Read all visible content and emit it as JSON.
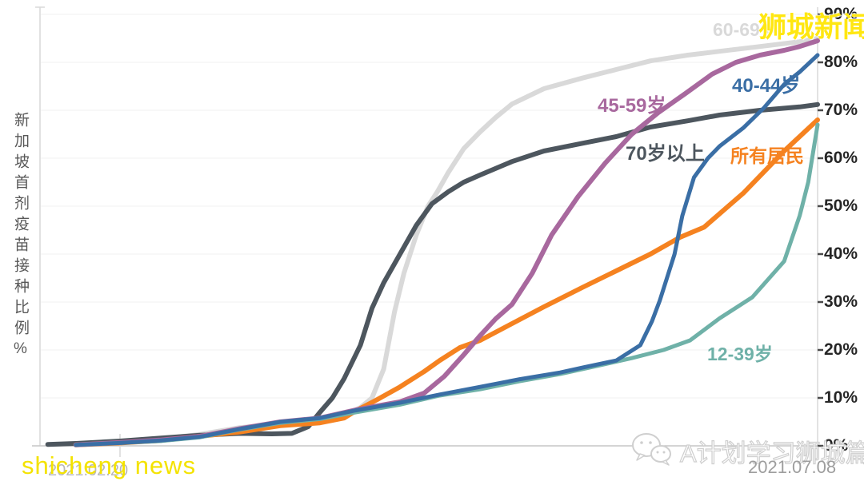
{
  "y_axis_title": "新加坡首剂疫苗接种比例%",
  "watermarks": {
    "top_right": "狮城新闻",
    "bottom_left": "shicheng news"
  },
  "footer": {
    "brand_label": "A计划学习狮城篇",
    "logo_icon": "wechat-icon",
    "date": "2021.07.08"
  },
  "x_axis": {
    "start_label": "2021.02.20",
    "end_label": "2021.07.08"
  },
  "chart_data": {
    "type": "line",
    "title": "",
    "ylabel": "新加坡首剂疫苗接种比例%",
    "xlabel": "",
    "ylim": [
      0,
      90
    ],
    "grid": true,
    "legend_position": "inline-labels",
    "x_range": [
      "2021.02.20",
      "2021.07.08"
    ],
    "x_unit": "fraction_of_date_range",
    "y_unit": "percent",
    "y_ticks": [
      "90%",
      "80%",
      "70%",
      "60%",
      "50%",
      "40%",
      "30%",
      "20%",
      "10%",
      "0%"
    ],
    "colors": {
      "grid": "#f2f2f2",
      "axis": "#d9d9d9",
      "baseline": "#c6c6c6",
      "tick": "#4a4a4a"
    },
    "series": [
      {
        "label": "60-69岁",
        "color": "#d9d9d9",
        "width": 6,
        "points": [
          [
            0.046,
            0.3
          ],
          [
            0.103,
            0.8
          ],
          [
            0.154,
            1.4
          ],
          [
            0.206,
            2.4
          ],
          [
            0.257,
            3.8
          ],
          [
            0.309,
            4.6
          ],
          [
            0.36,
            5.3
          ],
          [
            0.391,
            6.2
          ],
          [
            0.412,
            8.0
          ],
          [
            0.427,
            10.0
          ],
          [
            0.442,
            16.0
          ],
          [
            0.456,
            28.0
          ],
          [
            0.468,
            36.0
          ],
          [
            0.484,
            44.0
          ],
          [
            0.499,
            50.0
          ],
          [
            0.511,
            53.0
          ],
          [
            0.525,
            57.0
          ],
          [
            0.545,
            62.0
          ],
          [
            0.566,
            65.5
          ],
          [
            0.586,
            68.5
          ],
          [
            0.607,
            71.3
          ],
          [
            0.648,
            74.5
          ],
          [
            0.697,
            76.7
          ],
          [
            0.741,
            78.5
          ],
          [
            0.785,
            80.3
          ],
          [
            0.833,
            81.5
          ],
          [
            0.874,
            82.3
          ],
          [
            0.926,
            83.3
          ],
          [
            0.977,
            84.3
          ],
          [
            1.0,
            85.0
          ]
        ]
      },
      {
        "label": "70岁以上",
        "color": "#4d565e",
        "width": 6,
        "points": [
          [
            0.01,
            0.3
          ],
          [
            0.046,
            0.5
          ],
          [
            0.103,
            1.0
          ],
          [
            0.154,
            1.6
          ],
          [
            0.206,
            2.2
          ],
          [
            0.257,
            2.6
          ],
          [
            0.298,
            2.5
          ],
          [
            0.324,
            2.6
          ],
          [
            0.345,
            4.0
          ],
          [
            0.36,
            7.0
          ],
          [
            0.376,
            10.0
          ],
          [
            0.391,
            14.0
          ],
          [
            0.412,
            21.0
          ],
          [
            0.427,
            28.7
          ],
          [
            0.442,
            34.0
          ],
          [
            0.463,
            40.0
          ],
          [
            0.484,
            46.0
          ],
          [
            0.504,
            50.5
          ],
          [
            0.525,
            53.0
          ],
          [
            0.545,
            55.0
          ],
          [
            0.566,
            56.5
          ],
          [
            0.607,
            59.3
          ],
          [
            0.648,
            61.5
          ],
          [
            0.697,
            63.1
          ],
          [
            0.741,
            64.5
          ],
          [
            0.785,
            66.5
          ],
          [
            0.833,
            67.8
          ],
          [
            0.874,
            69.0
          ],
          [
            0.926,
            70.0
          ],
          [
            0.977,
            70.7
          ],
          [
            1.0,
            71.2
          ]
        ]
      },
      {
        "label": "所有居民",
        "color": "#f58220",
        "width": 6,
        "points": [
          [
            0.046,
            0.2
          ],
          [
            0.103,
            0.6
          ],
          [
            0.154,
            1.1
          ],
          [
            0.206,
            2.0
          ],
          [
            0.257,
            2.9
          ],
          [
            0.309,
            4.2
          ],
          [
            0.36,
            4.8
          ],
          [
            0.391,
            5.8
          ],
          [
            0.406,
            7.3
          ],
          [
            0.432,
            9.5
          ],
          [
            0.463,
            12.3
          ],
          [
            0.494,
            15.5
          ],
          [
            0.514,
            17.8
          ],
          [
            0.54,
            20.5
          ],
          [
            0.566,
            22.0
          ],
          [
            0.607,
            25.5
          ],
          [
            0.648,
            29.0
          ],
          [
            0.697,
            33.0
          ],
          [
            0.741,
            36.5
          ],
          [
            0.785,
            40.0
          ],
          [
            0.823,
            43.5
          ],
          [
            0.854,
            45.6
          ],
          [
            0.905,
            52.8
          ],
          [
            0.957,
            61.5
          ],
          [
            1.0,
            68.0
          ]
        ]
      },
      {
        "label": "45-59岁",
        "color": "#a8689e",
        "width": 6,
        "points": [
          [
            0.046,
            0.2
          ],
          [
            0.103,
            0.7
          ],
          [
            0.154,
            1.2
          ],
          [
            0.206,
            2.0
          ],
          [
            0.257,
            3.6
          ],
          [
            0.309,
            5.0
          ],
          [
            0.36,
            5.8
          ],
          [
            0.406,
            7.5
          ],
          [
            0.463,
            9.2
          ],
          [
            0.494,
            11.0
          ],
          [
            0.52,
            14.5
          ],
          [
            0.545,
            19.0
          ],
          [
            0.566,
            23.0
          ],
          [
            0.586,
            26.5
          ],
          [
            0.607,
            29.5
          ],
          [
            0.633,
            36.0
          ],
          [
            0.658,
            44.0
          ],
          [
            0.692,
            52.0
          ],
          [
            0.727,
            59.0
          ],
          [
            0.761,
            65.0
          ],
          [
            0.795,
            69.5
          ],
          [
            0.83,
            73.5
          ],
          [
            0.864,
            77.5
          ],
          [
            0.895,
            80.0
          ],
          [
            0.926,
            81.5
          ],
          [
            0.957,
            82.5
          ],
          [
            0.977,
            83.3
          ],
          [
            1.0,
            84.5
          ]
        ]
      },
      {
        "label": "12-39岁",
        "color": "#6fb1a8",
        "width": 5,
        "points": [
          [
            0.046,
            0.2
          ],
          [
            0.103,
            0.6
          ],
          [
            0.154,
            1.0
          ],
          [
            0.206,
            1.8
          ],
          [
            0.257,
            3.4
          ],
          [
            0.309,
            4.8
          ],
          [
            0.36,
            5.6
          ],
          [
            0.406,
            7.0
          ],
          [
            0.463,
            8.6
          ],
          [
            0.514,
            10.5
          ],
          [
            0.566,
            11.8
          ],
          [
            0.617,
            13.5
          ],
          [
            0.669,
            15.0
          ],
          [
            0.72,
            16.8
          ],
          [
            0.761,
            18.3
          ],
          [
            0.802,
            20.0
          ],
          [
            0.836,
            22.0
          ],
          [
            0.874,
            26.6
          ],
          [
            0.916,
            31.0
          ],
          [
            0.957,
            38.5
          ],
          [
            0.977,
            48.0
          ],
          [
            0.988,
            55.0
          ],
          [
            1.0,
            67.0
          ]
        ]
      },
      {
        "label": "40-44岁",
        "color": "#3a6ea5",
        "width": 5,
        "points": [
          [
            0.046,
            0.2
          ],
          [
            0.103,
            0.6
          ],
          [
            0.154,
            1.1
          ],
          [
            0.206,
            1.9
          ],
          [
            0.257,
            3.5
          ],
          [
            0.309,
            5.0
          ],
          [
            0.36,
            5.8
          ],
          [
            0.406,
            7.4
          ],
          [
            0.463,
            9.0
          ],
          [
            0.514,
            10.7
          ],
          [
            0.566,
            12.3
          ],
          [
            0.617,
            13.9
          ],
          [
            0.669,
            15.3
          ],
          [
            0.7,
            16.4
          ],
          [
            0.741,
            17.8
          ],
          [
            0.772,
            21.0
          ],
          [
            0.787,
            26.0
          ],
          [
            0.797,
            30.3
          ],
          [
            0.816,
            40.0
          ],
          [
            0.826,
            48.0
          ],
          [
            0.841,
            56.0
          ],
          [
            0.859,
            60.0
          ],
          [
            0.874,
            62.5
          ],
          [
            0.905,
            66.4
          ],
          [
            0.931,
            70.5
          ],
          [
            0.957,
            75.4
          ],
          [
            0.977,
            78.0
          ],
          [
            1.0,
            81.5
          ]
        ]
      }
    ]
  }
}
